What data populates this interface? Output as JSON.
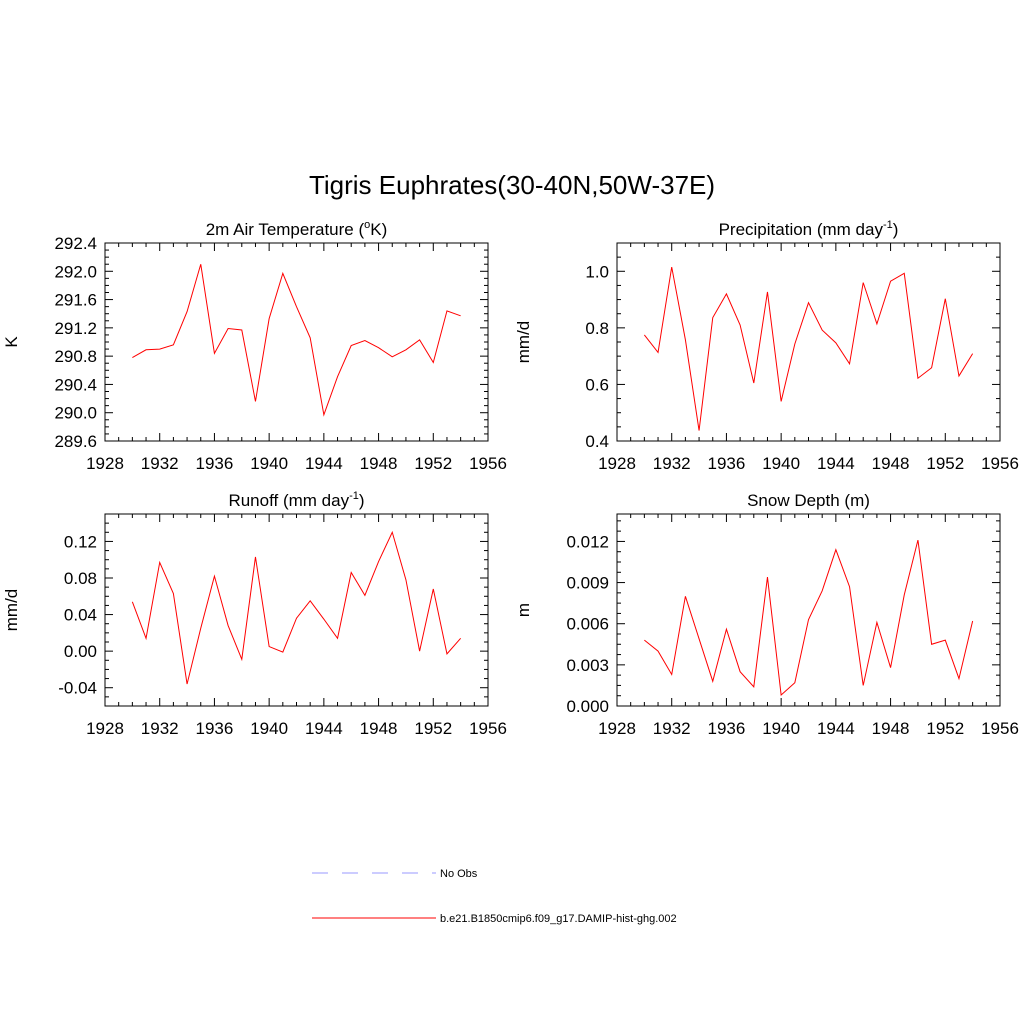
{
  "figure": {
    "title": "Tigris Euphrates(30-40N,50W-37E)"
  },
  "legend": {
    "items": [
      {
        "label": "No Obs",
        "color": "#9999ff",
        "dash": "dashed"
      },
      {
        "label": "b.e21.B1850cmip6.f09_g17.DAMIP-hist-ghg.002",
        "color": "#ff0000",
        "dash": "solid"
      }
    ]
  },
  "chart_data": [
    {
      "type": "line",
      "title_main": "2m Air Temperature (",
      "title_sup": "o",
      "title_tail": "K)",
      "ylabel": "K",
      "xlim": [
        1928,
        1956
      ],
      "ylim": [
        289.6,
        292.4
      ],
      "xticks": [
        1928,
        1932,
        1936,
        1940,
        1944,
        1948,
        1952,
        1956
      ],
      "yticks": [
        "289.6",
        "290.0",
        "290.4",
        "290.8",
        "291.2",
        "291.6",
        "292.0",
        "292.4"
      ],
      "series": [
        {
          "color": "#ff0000",
          "x": [
            1930,
            1931,
            1932,
            1933,
            1934,
            1935,
            1936,
            1937,
            1938,
            1939,
            1940,
            1941,
            1942,
            1943,
            1944,
            1945,
            1946,
            1947,
            1948,
            1949,
            1950,
            1951,
            1952,
            1953,
            1954
          ],
          "values": [
            290.78,
            290.89,
            290.9,
            290.96,
            291.43,
            292.1,
            290.84,
            291.19,
            291.17,
            290.16,
            291.33,
            291.97,
            291.5,
            291.06,
            289.97,
            290.51,
            290.95,
            291.02,
            290.92,
            290.79,
            290.89,
            291.03,
            290.71,
            291.44,
            291.37
          ]
        }
      ]
    },
    {
      "type": "line",
      "title_main": "Precipitation (mm day",
      "title_sup": "-1",
      "title_tail": ")",
      "ylabel": "mm/d",
      "xlim": [
        1928,
        1956
      ],
      "ylim": [
        0.4,
        1.1
      ],
      "xticks": [
        1928,
        1932,
        1936,
        1940,
        1944,
        1948,
        1952,
        1956
      ],
      "yticks": [
        "0.4",
        "0.6",
        "0.8",
        "1.0"
      ],
      "series": [
        {
          "color": "#ff0000",
          "x": [
            1930,
            1931,
            1932,
            1933,
            1934,
            1935,
            1936,
            1937,
            1938,
            1939,
            1940,
            1941,
            1942,
            1943,
            1944,
            1945,
            1946,
            1947,
            1948,
            1949,
            1950,
            1951,
            1952,
            1953,
            1954
          ],
          "values": [
            0.775,
            0.713,
            1.015,
            0.758,
            0.437,
            0.836,
            0.92,
            0.81,
            0.605,
            0.927,
            0.54,
            0.743,
            0.889,
            0.792,
            0.747,
            0.673,
            0.96,
            0.814,
            0.965,
            0.993,
            0.622,
            0.659,
            0.903,
            0.63,
            0.709
          ]
        }
      ]
    },
    {
      "type": "line",
      "title_main": "Runoff (mm day",
      "title_sup": "-1",
      "title_tail": ")",
      "ylabel": "mm/d",
      "xlim": [
        1928,
        1956
      ],
      "ylim": [
        -0.06,
        0.15
      ],
      "xticks": [
        1928,
        1932,
        1936,
        1940,
        1944,
        1948,
        1952,
        1956
      ],
      "yticks": [
        "-0.04",
        "0.00",
        "0.04",
        "0.08",
        "0.12"
      ],
      "series": [
        {
          "color": "#ff0000",
          "x": [
            1930,
            1931,
            1932,
            1933,
            1934,
            1935,
            1936,
            1937,
            1938,
            1939,
            1940,
            1941,
            1942,
            1943,
            1944,
            1945,
            1946,
            1947,
            1948,
            1949,
            1950,
            1951,
            1952,
            1953,
            1954
          ],
          "values": [
            0.054,
            0.014,
            0.097,
            0.063,
            -0.036,
            0.025,
            0.082,
            0.028,
            -0.009,
            0.103,
            0.005,
            -0.001,
            0.036,
            0.055,
            0.035,
            0.014,
            0.086,
            0.061,
            0.098,
            0.13,
            0.078,
            0.0,
            0.068,
            -0.003,
            0.014
          ]
        }
      ]
    },
    {
      "type": "line",
      "title_main": "Snow Depth (m)",
      "title_sup": "",
      "title_tail": "",
      "ylabel": "m",
      "xlim": [
        1928,
        1956
      ],
      "ylim": [
        0.0,
        0.014
      ],
      "xticks": [
        1928,
        1932,
        1936,
        1940,
        1944,
        1948,
        1952,
        1956
      ],
      "yticks": [
        "0.000",
        "0.003",
        "0.006",
        "0.009",
        "0.012"
      ],
      "series": [
        {
          "color": "#ff0000",
          "x": [
            1930,
            1931,
            1932,
            1933,
            1934,
            1935,
            1936,
            1937,
            1938,
            1939,
            1940,
            1941,
            1942,
            1943,
            1944,
            1945,
            1946,
            1947,
            1948,
            1949,
            1950,
            1951,
            1952,
            1953,
            1954
          ],
          "values": [
            0.0048,
            0.004,
            0.0023,
            0.008,
            0.0049,
            0.0018,
            0.0056,
            0.0025,
            0.0014,
            0.0094,
            0.0008,
            0.0017,
            0.0063,
            0.0084,
            0.0114,
            0.0087,
            0.0015,
            0.0061,
            0.0028,
            0.0081,
            0.0121,
            0.0045,
            0.0048,
            0.002,
            0.0062
          ]
        }
      ]
    }
  ]
}
